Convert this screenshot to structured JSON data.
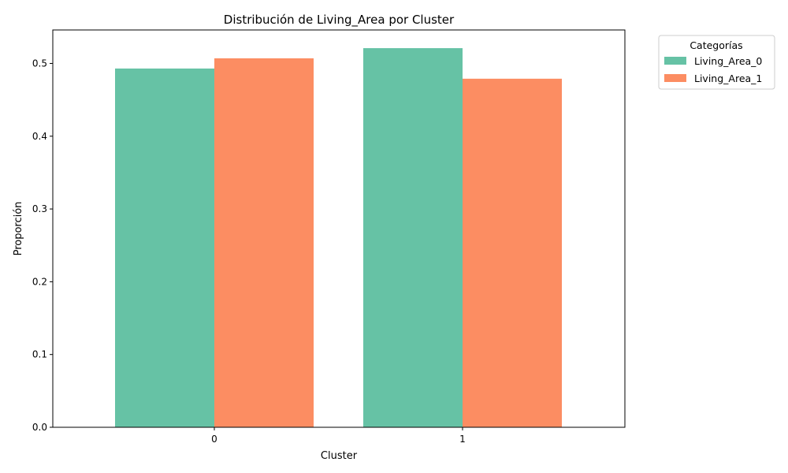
{
  "chart_data": {
    "type": "bar",
    "title": "Distribución de Living_Area por Cluster",
    "xlabel": "Cluster",
    "ylabel": "Proporción",
    "categories": [
      "0",
      "1"
    ],
    "series": [
      {
        "name": "Living_Area_0",
        "values": [
          0.493,
          0.521
        ],
        "color": "#66c2a5"
      },
      {
        "name": "Living_Area_1",
        "values": [
          0.507,
          0.479
        ],
        "color": "#fc8d62"
      }
    ],
    "ylim": [
      0,
      0.546
    ],
    "yticks": [
      "0.0",
      "0.1",
      "0.2",
      "0.3",
      "0.4",
      "0.5"
    ],
    "legend": {
      "title": "Categorías",
      "placement": "outside-top-right"
    },
    "grid": false
  }
}
